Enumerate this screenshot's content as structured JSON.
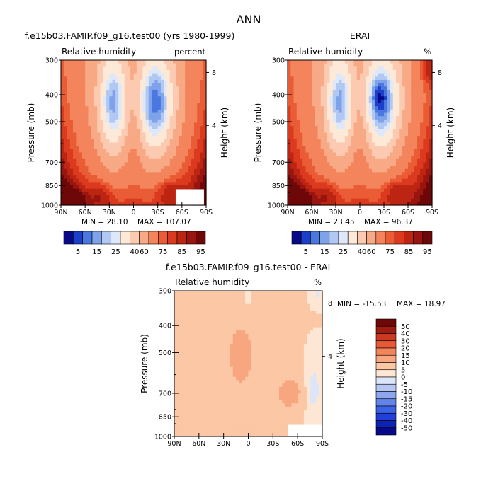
{
  "title": "ANN",
  "colors": {
    "abs_scale": [
      "#08088a",
      "#1c3fc9",
      "#4a78e0",
      "#7ea3ea",
      "#b1c9f2",
      "#dfe8f8",
      "#fde9d8",
      "#fbcab0",
      "#f8a985",
      "#f3845c",
      "#ea5c35",
      "#db3a1f",
      "#bd2513",
      "#981510",
      "#6e0808"
    ],
    "diff_scale": [
      "#08088a",
      "#0e22b4",
      "#1f3fd6",
      "#3c62e6",
      "#6284ea",
      "#8ea6ee",
      "#b7c7f3",
      "#dde6f8",
      "#fde6d3",
      "#fbc7a5",
      "#f7a67f",
      "#f3845b",
      "#e75a35",
      "#c93a20",
      "#a01c10",
      "#6e0808"
    ],
    "blank": "#ffffff"
  },
  "chart_data": [
    {
      "type": "heatmap",
      "title": "f.e15b03.FAMIP.f09_g16.test00 (yrs 1980-1999)",
      "variable": "Relative humidity",
      "units": "percent",
      "xlabel": "",
      "ylabel": "Pressure (mb)",
      "ylabel_right": "Height (km)",
      "x_ticks": [
        "90N",
        "60N",
        "30N",
        "0",
        "30S",
        "60S",
        "90S"
      ],
      "y_ticks": [
        "300",
        "400",
        "500",
        "700",
        "850",
        "1000"
      ],
      "y_ticks_right": [
        "8",
        "4"
      ],
      "min_label": "MIN = 28.10",
      "max_label": "MAX = 107.07",
      "colorbar_labels": [
        "5",
        "15",
        "25",
        "40",
        "60",
        "75",
        "85",
        "95"
      ]
    },
    {
      "type": "heatmap",
      "title": "ERAI",
      "variable": "Relative humidity",
      "units": "%",
      "xlabel": "",
      "ylabel": "Pressure (mb)",
      "ylabel_right": "Height (km)",
      "x_ticks": [
        "90N",
        "60N",
        "30N",
        "0",
        "30S",
        "60S",
        "90S"
      ],
      "y_ticks": [
        "300",
        "400",
        "500",
        "700",
        "850",
        "1000"
      ],
      "y_ticks_right": [
        "8",
        "4"
      ],
      "min_label": "MIN = 23.45",
      "max_label": "MAX = 96.37",
      "colorbar_labels": [
        "5",
        "15",
        "25",
        "40",
        "60",
        "75",
        "85",
        "95"
      ]
    },
    {
      "type": "heatmap",
      "title": "f.e15b03.FAMIP.f09_g16.test00 - ERAI",
      "variable": "Relative humidity",
      "units": "%",
      "xlabel": "",
      "ylabel": "Pressure (mb)",
      "ylabel_right": "Height (km)",
      "x_ticks": [
        "90N",
        "60N",
        "30N",
        "0",
        "30S",
        "60S",
        "90S"
      ],
      "y_ticks": [
        "300",
        "400",
        "500",
        "700",
        "850",
        "1000"
      ],
      "y_ticks_right": [
        "8",
        "4"
      ],
      "min_label": "MIN = -15.53",
      "max_label": "MAX = 18.97",
      "colorbar_labels": [
        "50",
        "40",
        "30",
        "20",
        "15",
        "10",
        "5",
        "0",
        "-5",
        "-10",
        "-15",
        "-20",
        "-30",
        "-40",
        "-50"
      ]
    }
  ]
}
